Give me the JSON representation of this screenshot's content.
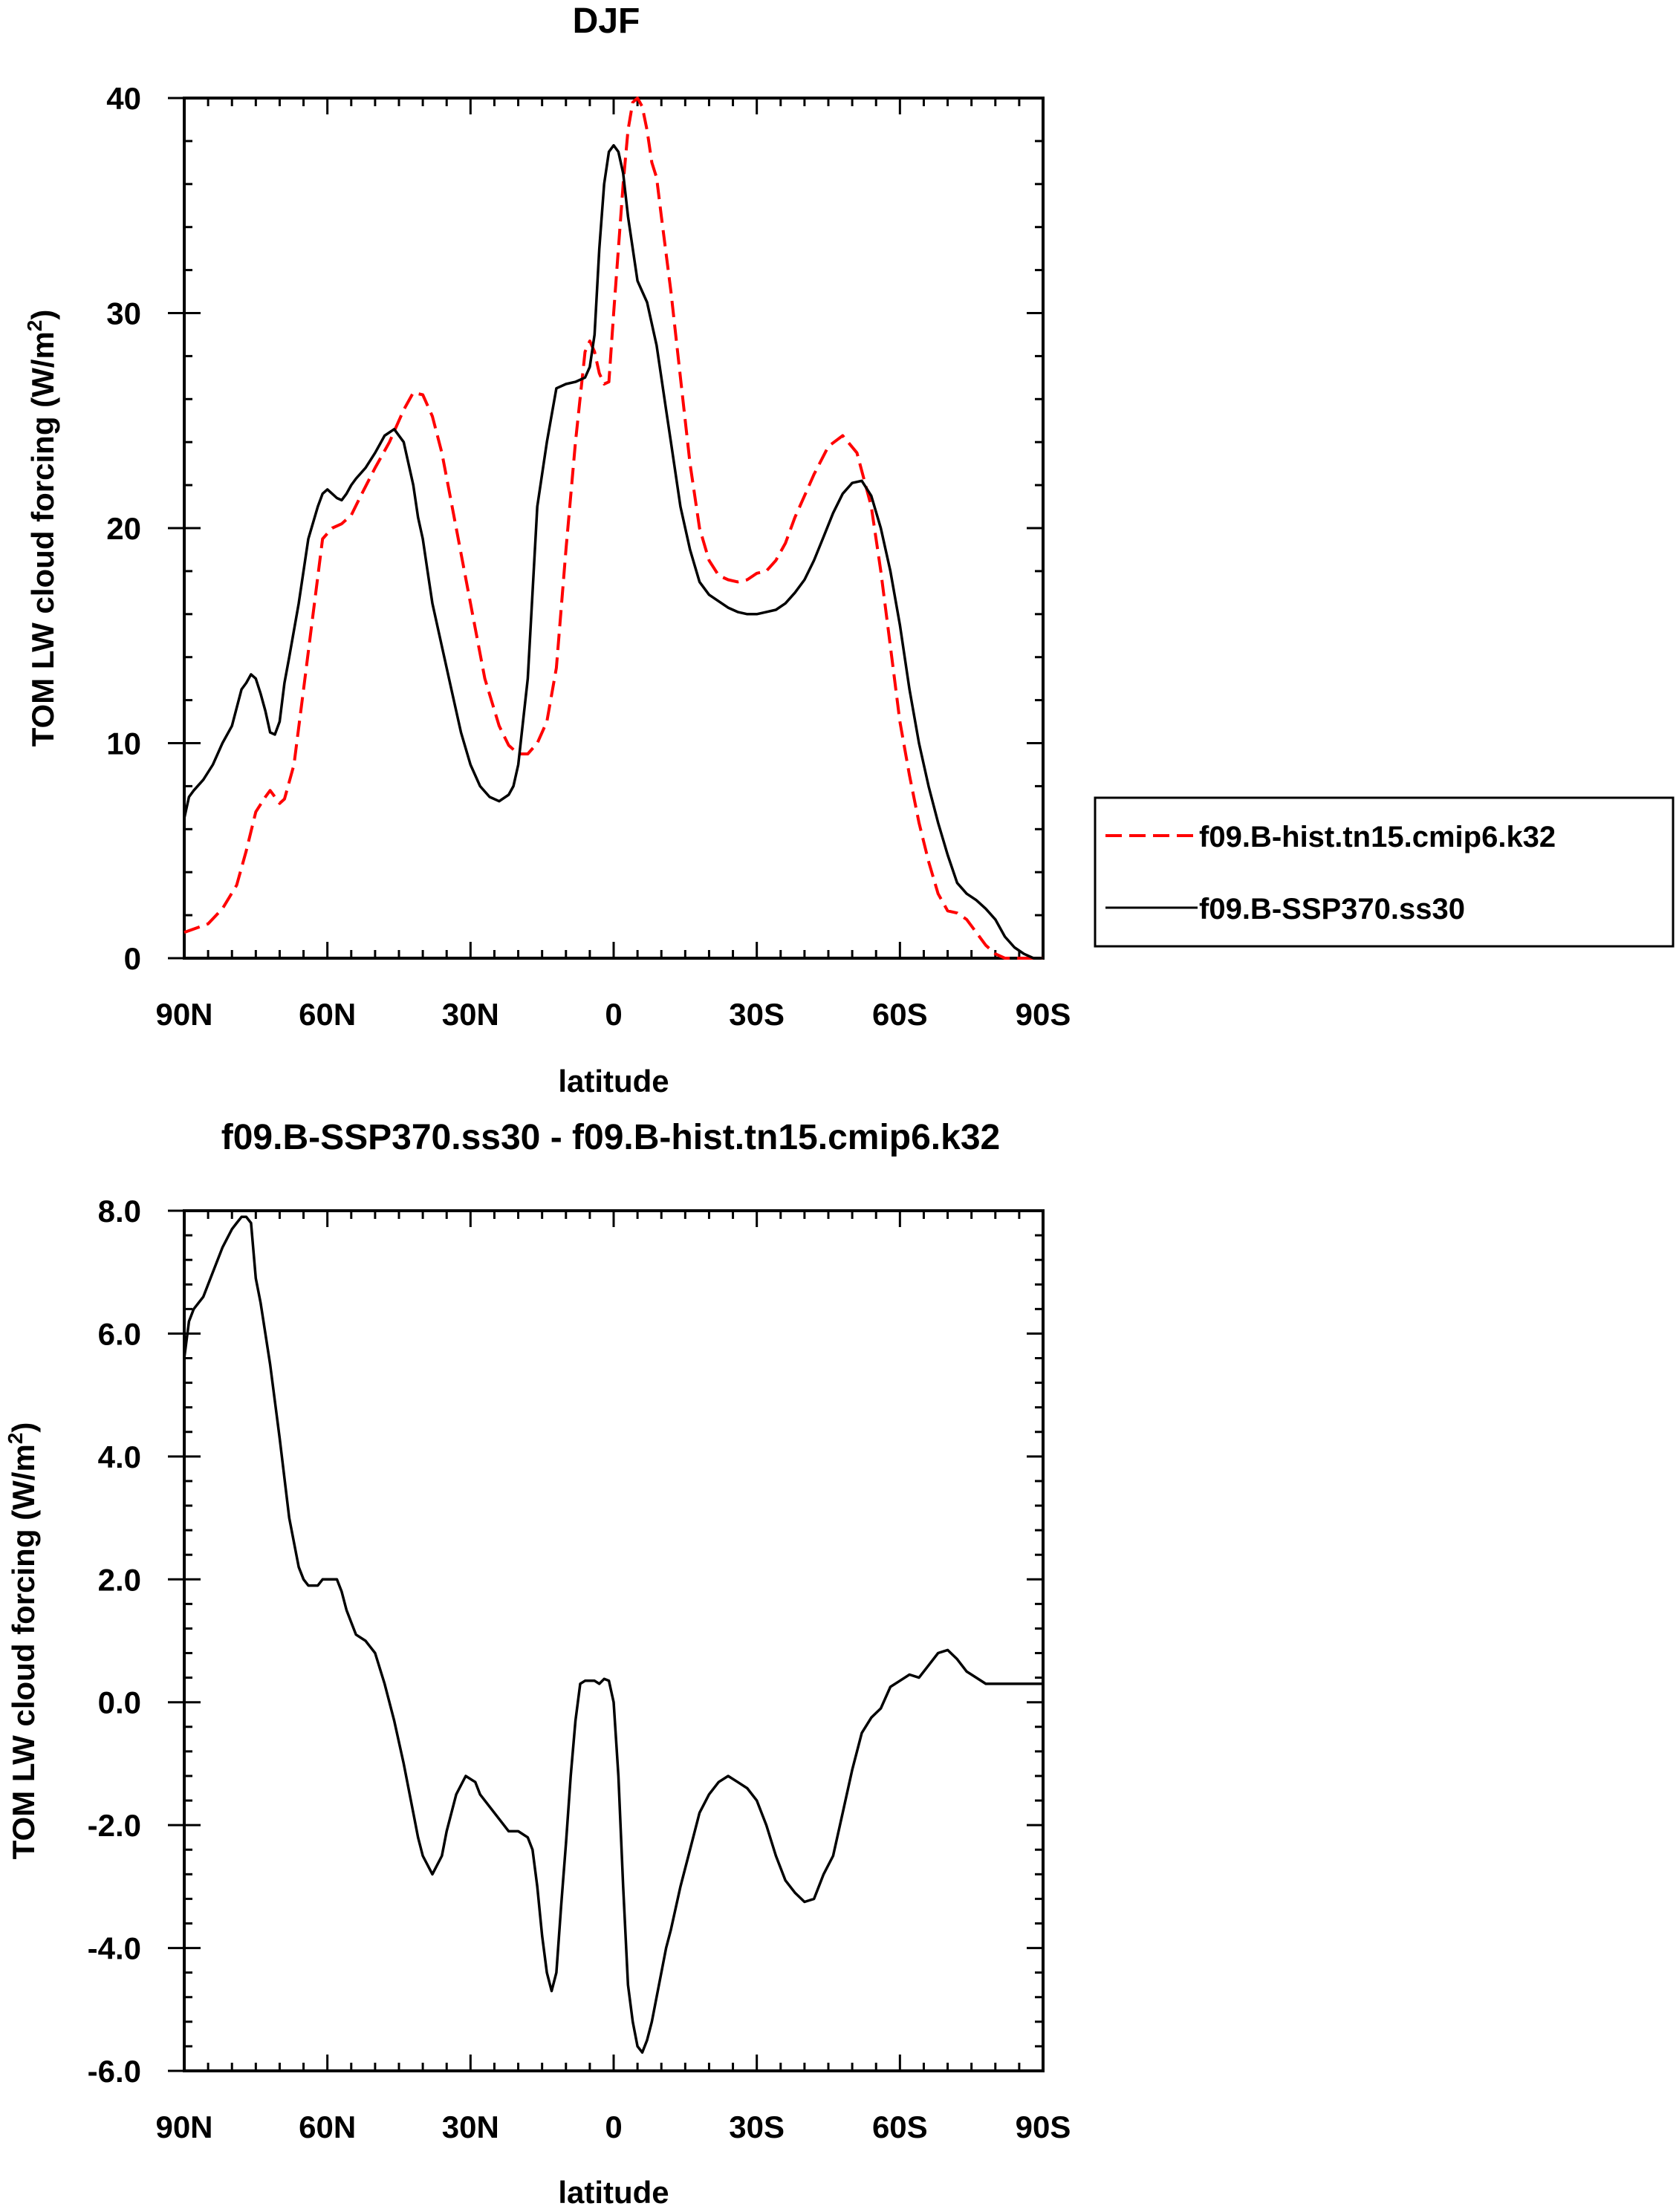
{
  "chart_data": [
    {
      "type": "line",
      "title": "DJF",
      "xlabel": "latitude",
      "ylabel": "TOM LW cloud forcing (W/m",
      "ylabel_sup": "2",
      "ylabel_close": ")",
      "xlim": [
        90,
        -90
      ],
      "ylim": [
        0,
        40
      ],
      "x_ticks": [
        90,
        60,
        30,
        0,
        -30,
        -60,
        -90
      ],
      "x_tick_labels": [
        "90N",
        "60N",
        "30N",
        "0",
        "30S",
        "60S",
        "90S"
      ],
      "y_ticks": [
        0,
        10,
        20,
        30,
        40
      ],
      "y_tick_labels": [
        "0",
        "10",
        "20",
        "30",
        "40"
      ],
      "legend": "right",
      "series": [
        {
          "name": "f09.B-hist.tn15.cmip6.k32",
          "color": "#ff0000",
          "dash": "dashed",
          "x": [
            90,
            85,
            82,
            79,
            77,
            75,
            73,
            72,
            70,
            69,
            67,
            65,
            63,
            61,
            59,
            57,
            55,
            53,
            50,
            47,
            44,
            42,
            40,
            38,
            36,
            33,
            30,
            27,
            24,
            22,
            20,
            18,
            16,
            14,
            12,
            10,
            8,
            6,
            5,
            4,
            3,
            2,
            1,
            0,
            -1,
            -2,
            -3,
            -4,
            -5,
            -6,
            -7,
            -8,
            -9,
            -10,
            -12,
            -14,
            -16,
            -18,
            -20,
            -22,
            -24,
            -26,
            -28,
            -30,
            -32,
            -34,
            -36,
            -38,
            -40,
            -42,
            -45,
            -48,
            -51,
            -54,
            -56,
            -58,
            -60,
            -62,
            -64,
            -66,
            -68,
            -70,
            -72,
            -74,
            -76,
            -78,
            -80,
            -82,
            -84,
            -86,
            -88,
            -90
          ],
          "y": [
            1.2,
            1.6,
            2.3,
            3.4,
            5.0,
            6.8,
            7.5,
            7.8,
            7.2,
            7.4,
            9.0,
            12.5,
            16.0,
            19.5,
            20.0,
            20.2,
            20.6,
            21.5,
            22.8,
            24.0,
            25.5,
            26.3,
            26.2,
            25.2,
            23.5,
            20.0,
            16.5,
            13.0,
            10.8,
            9.9,
            9.5,
            9.5,
            10.0,
            11.0,
            13.5,
            19.0,
            24.0,
            28.2,
            28.7,
            28.2,
            27.2,
            26.7,
            26.8,
            30.0,
            33.0,
            36.0,
            38.5,
            39.8,
            40.0,
            39.6,
            38.5,
            37.0,
            36.3,
            34.5,
            31.0,
            27.0,
            23.0,
            20.0,
            18.5,
            17.8,
            17.6,
            17.5,
            17.6,
            17.9,
            18.0,
            18.5,
            19.3,
            20.5,
            21.5,
            22.5,
            23.8,
            24.3,
            23.5,
            21.0,
            18.0,
            14.5,
            11.0,
            8.5,
            6.3,
            4.5,
            3.0,
            2.2,
            2.1,
            1.8,
            1.2,
            0.6,
            0.2,
            0.0,
            0.0,
            0.0,
            0.0,
            0.0
          ],
          "trim_to": -90
        },
        {
          "name": "f09.B-SSP370.ss30",
          "color": "#000000",
          "dash": "solid",
          "x": [
            90,
            89,
            88,
            86,
            84,
            82,
            80,
            78,
            77,
            76,
            75,
            74,
            73,
            72,
            71,
            70,
            69,
            68,
            66,
            64,
            62,
            61,
            60,
            59,
            58,
            57,
            56,
            55,
            54,
            52,
            50,
            48,
            46,
            44,
            42,
            41,
            40,
            39,
            38,
            36,
            34,
            32,
            30,
            28,
            26,
            24,
            22,
            21,
            20,
            19,
            18,
            17,
            16,
            14,
            12,
            10,
            8,
            6,
            5,
            4,
            3,
            2,
            1,
            0,
            -1,
            -2,
            -3,
            -4,
            -5,
            -6,
            -7,
            -8,
            -9,
            -10,
            -11,
            -12,
            -13,
            -14,
            -16,
            -18,
            -20,
            -22,
            -24,
            -26,
            -28,
            -30,
            -32,
            -34,
            -36,
            -38,
            -40,
            -42,
            -44,
            -46,
            -48,
            -50,
            -52,
            -54,
            -56,
            -58,
            -60,
            -62,
            -64,
            -66,
            -68,
            -70,
            -72,
            -74,
            -76,
            -78,
            -80,
            -82,
            -84,
            -86,
            -88,
            -89,
            -90
          ],
          "y": [
            6.5,
            7.5,
            7.8,
            8.3,
            9.0,
            10.0,
            10.8,
            12.5,
            12.8,
            13.2,
            13.0,
            12.3,
            11.5,
            10.5,
            10.4,
            11.0,
            12.8,
            14.0,
            16.5,
            19.5,
            21.0,
            21.6,
            21.8,
            21.6,
            21.4,
            21.3,
            21.6,
            22.0,
            22.3,
            22.8,
            23.5,
            24.3,
            24.6,
            24.0,
            22.0,
            20.5,
            19.5,
            18.0,
            16.5,
            14.5,
            12.5,
            10.5,
            9.0,
            8.0,
            7.5,
            7.3,
            7.6,
            8.0,
            9.0,
            11.0,
            13.0,
            17.0,
            21.0,
            24.0,
            26.5,
            26.7,
            26.8,
            27.0,
            27.5,
            29.0,
            33.0,
            36.0,
            37.5,
            37.8,
            37.5,
            36.5,
            34.5,
            33.0,
            31.5,
            31.0,
            30.5,
            29.5,
            28.5,
            27.0,
            25.5,
            24.0,
            22.5,
            21.0,
            19.0,
            17.5,
            16.9,
            16.6,
            16.3,
            16.1,
            16.0,
            16.0,
            16.1,
            16.2,
            16.5,
            17.0,
            17.6,
            18.5,
            19.6,
            20.7,
            21.6,
            22.1,
            22.2,
            21.5,
            20.0,
            18.0,
            15.5,
            12.5,
            10.0,
            8.0,
            6.3,
            4.8,
            3.5,
            3.0,
            2.7,
            2.3,
            1.8,
            1.0,
            0.5,
            0.2,
            0.0,
            0.0,
            0.0
          ],
          "trim_to": -90
        }
      ]
    },
    {
      "type": "line",
      "title": "f09.B-SSP370.ss30 - f09.B-hist.tn15.cmip6.k32",
      "xlabel": "latitude",
      "ylabel": "TOM LW cloud forcing (W/m",
      "ylabel_sup": "2",
      "ylabel_close": ")",
      "xlim": [
        90,
        -90
      ],
      "ylim": [
        -6.0,
        8.0
      ],
      "x_ticks": [
        90,
        60,
        30,
        0,
        -30,
        -60,
        -90
      ],
      "x_tick_labels": [
        "90N",
        "60N",
        "30N",
        "0",
        "30S",
        "60S",
        "90S"
      ],
      "y_ticks": [
        -6.0,
        -4.0,
        -2.0,
        0.0,
        2.0,
        4.0,
        6.0,
        8.0
      ],
      "y_tick_labels": [
        "-6.0",
        "-4.0",
        "-2.0",
        "0.0",
        "2.0",
        "4.0",
        "6.0",
        "8.0"
      ],
      "series": [
        {
          "color": "#000000",
          "dash": "solid",
          "x": [
            90,
            89,
            88,
            86,
            84,
            82,
            80,
            79,
            78,
            77,
            76,
            75,
            74,
            72,
            70,
            68,
            66,
            65,
            64,
            62,
            61,
            60,
            58,
            57,
            56,
            55,
            54,
            52,
            51,
            50,
            48,
            46,
            44,
            42,
            41,
            40,
            38,
            36,
            35,
            33,
            31,
            29,
            28,
            26,
            24,
            22,
            20,
            18,
            17,
            16,
            15,
            14,
            13,
            12,
            11,
            10,
            9,
            8,
            7,
            6,
            5,
            4,
            3,
            2,
            1,
            0,
            -1,
            -2,
            -3,
            -4,
            -5,
            -6,
            -7,
            -8,
            -9,
            -10,
            -11,
            -12,
            -14,
            -16,
            -18,
            -20,
            -22,
            -24,
            -26,
            -28,
            -30,
            -32,
            -34,
            -36,
            -38,
            -40,
            -42,
            -44,
            -46,
            -48,
            -50,
            -52,
            -54,
            -56,
            -58,
            -60,
            -62,
            -64,
            -66,
            -68,
            -70,
            -72,
            -74,
            -76,
            -78,
            -80,
            -82,
            -84,
            -86,
            -88,
            -90
          ],
          "y": [
            5.6,
            6.2,
            6.4,
            6.6,
            7.0,
            7.4,
            7.7,
            7.8,
            7.9,
            7.9,
            7.8,
            6.9,
            6.5,
            5.5,
            4.3,
            3.0,
            2.2,
            2.0,
            1.9,
            1.9,
            2.0,
            2.0,
            2.0,
            1.8,
            1.5,
            1.3,
            1.1,
            1.0,
            0.9,
            0.8,
            0.3,
            -0.3,
            -1.0,
            -1.8,
            -2.2,
            -2.5,
            -2.8,
            -2.5,
            -2.1,
            -1.5,
            -1.2,
            -1.3,
            -1.5,
            -1.7,
            -1.9,
            -2.1,
            -2.1,
            -2.2,
            -2.4,
            -3.0,
            -3.8,
            -4.4,
            -4.7,
            -4.4,
            -3.3,
            -2.3,
            -1.2,
            -0.3,
            0.3,
            0.35,
            0.35,
            0.35,
            0.3,
            0.38,
            0.35,
            0.0,
            -1.2,
            -3.0,
            -4.6,
            -5.2,
            -5.6,
            -5.7,
            -5.5,
            -5.2,
            -4.8,
            -4.4,
            -4.0,
            -3.7,
            -3.0,
            -2.4,
            -1.8,
            -1.5,
            -1.3,
            -1.2,
            -1.3,
            -1.4,
            -1.6,
            -2.0,
            -2.5,
            -2.9,
            -3.1,
            -3.25,
            -3.2,
            -2.8,
            -2.5,
            -1.8,
            -1.1,
            -0.5,
            -0.25,
            -0.1,
            0.25,
            0.35,
            0.45,
            0.4,
            0.6,
            0.8,
            0.85,
            0.7,
            0.5,
            0.4,
            0.3,
            0.3,
            0.3,
            0.3,
            0.3,
            0.3,
            0.3
          ],
          "trim_to": -90
        }
      ]
    }
  ]
}
